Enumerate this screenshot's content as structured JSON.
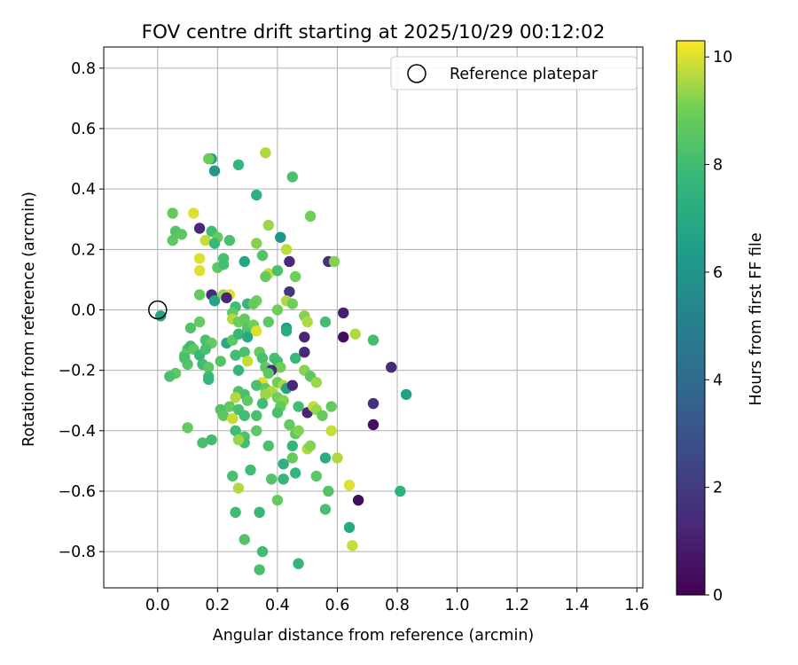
{
  "chart_data": {
    "type": "scatter",
    "title": "FOV centre drift starting at 2025/10/29 00:12:02",
    "xlabel": "Angular distance from reference (arcmin)",
    "ylabel": "Rotation from reference (arcmin)",
    "xlim": [
      -0.18,
      1.62
    ],
    "ylim": [
      -0.92,
      0.87
    ],
    "xticks": [
      0.0,
      0.2,
      0.4,
      0.6,
      0.8,
      1.0,
      1.2,
      1.4,
      1.6
    ],
    "xtick_labels": [
      "0.0",
      "0.2",
      "0.4",
      "0.6",
      "0.8",
      "1.0",
      "1.2",
      "1.4",
      "1.6"
    ],
    "yticks": [
      0.8,
      0.6,
      0.4,
      0.2,
      0.0,
      -0.2,
      -0.4,
      -0.6,
      -0.8
    ],
    "ytick_labels": [
      "0.8",
      "0.6",
      "0.4",
      "0.2",
      "0.0",
      "−0.2",
      "−0.4",
      "−0.6",
      "−0.8"
    ],
    "grid": true,
    "legend": {
      "placement": "upper-right",
      "entries": [
        "Reference platepar"
      ]
    },
    "reference_point": {
      "x": 0.0,
      "y": 0.0,
      "label": "Reference platepar"
    },
    "colorbar": {
      "label": "Hours from first FF file",
      "range": [
        0,
        10.3
      ],
      "ticks": [
        0,
        2,
        4,
        6,
        8,
        10
      ],
      "tick_labels": [
        "0",
        "2",
        "4",
        "6",
        "8",
        "10"
      ],
      "colormap": "viridis"
    },
    "points": [
      {
        "x": 0.18,
        "y": 0.5,
        "h": 6.6
      },
      {
        "x": 0.17,
        "y": 0.5,
        "h": 8.9
      },
      {
        "x": 0.27,
        "y": 0.48,
        "h": 7.6
      },
      {
        "x": 0.36,
        "y": 0.52,
        "h": 9.6
      },
      {
        "x": 0.19,
        "y": 0.46,
        "h": 6.2
      },
      {
        "x": 0.45,
        "y": 0.44,
        "h": 8.2
      },
      {
        "x": 0.33,
        "y": 0.38,
        "h": 7.4
      },
      {
        "x": 0.05,
        "y": 0.32,
        "h": 8.8
      },
      {
        "x": 0.12,
        "y": 0.32,
        "h": 10.0
      },
      {
        "x": 0.51,
        "y": 0.31,
        "h": 9.0
      },
      {
        "x": 0.14,
        "y": 0.27,
        "h": 1.3
      },
      {
        "x": 0.06,
        "y": 0.26,
        "h": 8.4
      },
      {
        "x": 0.08,
        "y": 0.25,
        "h": 8.6
      },
      {
        "x": 0.18,
        "y": 0.26,
        "h": 8.0
      },
      {
        "x": 0.37,
        "y": 0.28,
        "h": 9.4
      },
      {
        "x": 0.41,
        "y": 0.24,
        "h": 6.0
      },
      {
        "x": 0.2,
        "y": 0.24,
        "h": 8.8
      },
      {
        "x": 0.05,
        "y": 0.23,
        "h": 8.6
      },
      {
        "x": 0.16,
        "y": 0.23,
        "h": 9.8
      },
      {
        "x": 0.24,
        "y": 0.23,
        "h": 8.2
      },
      {
        "x": 0.19,
        "y": 0.22,
        "h": 7.8
      },
      {
        "x": 0.33,
        "y": 0.22,
        "h": 9.2
      },
      {
        "x": 0.43,
        "y": 0.2,
        "h": 9.7
      },
      {
        "x": 0.22,
        "y": 0.17,
        "h": 8.2
      },
      {
        "x": 0.35,
        "y": 0.18,
        "h": 8.4
      },
      {
        "x": 0.14,
        "y": 0.17,
        "h": 10.0
      },
      {
        "x": 0.29,
        "y": 0.16,
        "h": 6.8
      },
      {
        "x": 0.44,
        "y": 0.16,
        "h": 1.4
      },
      {
        "x": 0.57,
        "y": 0.16,
        "h": 1.6
      },
      {
        "x": 0.59,
        "y": 0.16,
        "h": 9.2
      },
      {
        "x": 0.2,
        "y": 0.14,
        "h": 8.6
      },
      {
        "x": 0.22,
        "y": 0.15,
        "h": 8.1
      },
      {
        "x": 0.14,
        "y": 0.13,
        "h": 10.0
      },
      {
        "x": 0.37,
        "y": 0.12,
        "h": 9.8
      },
      {
        "x": 0.4,
        "y": 0.13,
        "h": 8.2
      },
      {
        "x": 0.46,
        "y": 0.11,
        "h": 9.0
      },
      {
        "x": 0.36,
        "y": 0.11,
        "h": 8.8
      },
      {
        "x": 0.44,
        "y": 0.06,
        "h": 1.8
      },
      {
        "x": 0.18,
        "y": 0.05,
        "h": 1.5
      },
      {
        "x": 0.14,
        "y": 0.05,
        "h": 8.8
      },
      {
        "x": 0.22,
        "y": 0.05,
        "h": 9.4
      },
      {
        "x": 0.24,
        "y": 0.05,
        "h": 10.0
      },
      {
        "x": 0.23,
        "y": 0.04,
        "h": 1.2
      },
      {
        "x": 0.19,
        "y": 0.03,
        "h": 6.8
      },
      {
        "x": 0.26,
        "y": 0.01,
        "h": 8.0
      },
      {
        "x": 0.3,
        "y": 0.02,
        "h": 7.6
      },
      {
        "x": 0.33,
        "y": 0.03,
        "h": 9.0
      },
      {
        "x": 0.32,
        "y": 0.02,
        "h": 8.8
      },
      {
        "x": 0.43,
        "y": 0.03,
        "h": 9.6
      },
      {
        "x": 0.45,
        "y": 0.02,
        "h": 9.0
      },
      {
        "x": 0.4,
        "y": 0.0,
        "h": 9.0
      },
      {
        "x": 0.25,
        "y": -0.01,
        "h": 8.6
      },
      {
        "x": 0.25,
        "y": -0.03,
        "h": 9.6
      },
      {
        "x": 0.27,
        "y": -0.04,
        "h": 9.0
      },
      {
        "x": 0.29,
        "y": -0.03,
        "h": 8.8
      },
      {
        "x": 0.3,
        "y": -0.06,
        "h": 8.4
      },
      {
        "x": 0.32,
        "y": -0.05,
        "h": 9.0
      },
      {
        "x": 0.33,
        "y": -0.07,
        "h": 10.0
      },
      {
        "x": 0.37,
        "y": -0.04,
        "h": 8.6
      },
      {
        "x": 0.49,
        "y": -0.02,
        "h": 9.2
      },
      {
        "x": 0.5,
        "y": -0.04,
        "h": 9.6
      },
      {
        "x": 0.56,
        "y": -0.04,
        "h": 8.0
      },
      {
        "x": 0.62,
        "y": -0.01,
        "h": 1.0
      },
      {
        "x": 0.43,
        "y": -0.06,
        "h": 6.4
      },
      {
        "x": 0.43,
        "y": -0.07,
        "h": 7.2
      },
      {
        "x": 0.49,
        "y": -0.09,
        "h": 1.2
      },
      {
        "x": 0.62,
        "y": -0.09,
        "h": 0.4
      },
      {
        "x": 0.66,
        "y": -0.08,
        "h": 9.6
      },
      {
        "x": 0.72,
        "y": -0.1,
        "h": 8.0
      },
      {
        "x": 0.11,
        "y": -0.06,
        "h": 8.4
      },
      {
        "x": 0.14,
        "y": -0.04,
        "h": 8.8
      },
      {
        "x": 0.01,
        "y": -0.02,
        "h": 6.8
      },
      {
        "x": 0.23,
        "y": -0.11,
        "h": 7.0
      },
      {
        "x": 0.25,
        "y": -0.1,
        "h": 8.6
      },
      {
        "x": 0.27,
        "y": -0.08,
        "h": 7.8
      },
      {
        "x": 0.3,
        "y": -0.09,
        "h": 7.0
      },
      {
        "x": 0.16,
        "y": -0.1,
        "h": 8.2
      },
      {
        "x": 0.18,
        "y": -0.11,
        "h": 8.8
      },
      {
        "x": 0.1,
        "y": -0.13,
        "h": 8.4
      },
      {
        "x": 0.11,
        "y": -0.12,
        "h": 8.0
      },
      {
        "x": 0.12,
        "y": -0.13,
        "h": 8.6
      },
      {
        "x": 0.14,
        "y": -0.15,
        "h": 7.8
      },
      {
        "x": 0.16,
        "y": -0.13,
        "h": 8.2
      },
      {
        "x": 0.09,
        "y": -0.15,
        "h": 8.6
      },
      {
        "x": 0.09,
        "y": -0.16,
        "h": 8.2
      },
      {
        "x": 0.1,
        "y": -0.18,
        "h": 8.4
      },
      {
        "x": 0.15,
        "y": -0.18,
        "h": 8.0
      },
      {
        "x": 0.17,
        "y": -0.19,
        "h": 8.6
      },
      {
        "x": 0.21,
        "y": -0.17,
        "h": 8.4
      },
      {
        "x": 0.26,
        "y": -0.15,
        "h": 8.0
      },
      {
        "x": 0.29,
        "y": -0.14,
        "h": 8.2
      },
      {
        "x": 0.34,
        "y": -0.14,
        "h": 8.8
      },
      {
        "x": 0.35,
        "y": -0.16,
        "h": 8.2
      },
      {
        "x": 0.3,
        "y": -0.17,
        "h": 9.8
      },
      {
        "x": 0.36,
        "y": -0.19,
        "h": 8.6
      },
      {
        "x": 0.39,
        "y": -0.16,
        "h": 8.2
      },
      {
        "x": 0.4,
        "y": -0.17,
        "h": 8.0
      },
      {
        "x": 0.41,
        "y": -0.19,
        "h": 9.0
      },
      {
        "x": 0.38,
        "y": -0.2,
        "h": 1.5
      },
      {
        "x": 0.46,
        "y": -0.16,
        "h": 7.8
      },
      {
        "x": 0.49,
        "y": -0.14,
        "h": 1.4
      },
      {
        "x": 0.49,
        "y": -0.2,
        "h": 9.2
      },
      {
        "x": 0.51,
        "y": -0.22,
        "h": 8.6
      },
      {
        "x": 0.53,
        "y": -0.24,
        "h": 9.4
      },
      {
        "x": 0.78,
        "y": -0.19,
        "h": 1.4
      },
      {
        "x": 0.83,
        "y": -0.28,
        "h": 6.6
      },
      {
        "x": 0.06,
        "y": -0.21,
        "h": 8.6
      },
      {
        "x": 0.04,
        "y": -0.22,
        "h": 8.2
      },
      {
        "x": 0.17,
        "y": -0.22,
        "h": 8.0
      },
      {
        "x": 0.17,
        "y": -0.23,
        "h": 7.6
      },
      {
        "x": 0.27,
        "y": -0.2,
        "h": 7.6
      },
      {
        "x": 0.37,
        "y": -0.21,
        "h": 8.6
      },
      {
        "x": 0.4,
        "y": -0.24,
        "h": 9.0
      },
      {
        "x": 0.42,
        "y": -0.25,
        "h": 9.6
      },
      {
        "x": 0.35,
        "y": -0.24,
        "h": 10.0
      },
      {
        "x": 0.33,
        "y": -0.25,
        "h": 8.2
      },
      {
        "x": 0.36,
        "y": -0.26,
        "h": 8.8
      },
      {
        "x": 0.38,
        "y": -0.27,
        "h": 9.6
      },
      {
        "x": 0.43,
        "y": -0.26,
        "h": 6.8
      },
      {
        "x": 0.45,
        "y": -0.25,
        "h": 1.4
      },
      {
        "x": 0.27,
        "y": -0.27,
        "h": 8.4
      },
      {
        "x": 0.29,
        "y": -0.28,
        "h": 8.2
      },
      {
        "x": 0.26,
        "y": -0.29,
        "h": 9.6
      },
      {
        "x": 0.36,
        "y": -0.28,
        "h": 9.4
      },
      {
        "x": 0.4,
        "y": -0.29,
        "h": 9.0
      },
      {
        "x": 0.42,
        "y": -0.3,
        "h": 9.2
      },
      {
        "x": 0.3,
        "y": -0.3,
        "h": 8.6
      },
      {
        "x": 0.35,
        "y": -0.31,
        "h": 8.0
      },
      {
        "x": 0.24,
        "y": -0.32,
        "h": 8.8
      },
      {
        "x": 0.21,
        "y": -0.33,
        "h": 8.4
      },
      {
        "x": 0.22,
        "y": -0.35,
        "h": 8.6
      },
      {
        "x": 0.27,
        "y": -0.33,
        "h": 8.2
      },
      {
        "x": 0.29,
        "y": -0.35,
        "h": 8.0
      },
      {
        "x": 0.33,
        "y": -0.35,
        "h": 8.2
      },
      {
        "x": 0.41,
        "y": -0.32,
        "h": 8.8
      },
      {
        "x": 0.4,
        "y": -0.34,
        "h": 8.2
      },
      {
        "x": 0.47,
        "y": -0.32,
        "h": 8.0
      },
      {
        "x": 0.5,
        "y": -0.34,
        "h": 1.2
      },
      {
        "x": 0.52,
        "y": -0.32,
        "h": 9.8
      },
      {
        "x": 0.53,
        "y": -0.33,
        "h": 9.4
      },
      {
        "x": 0.55,
        "y": -0.35,
        "h": 8.8
      },
      {
        "x": 0.58,
        "y": -0.32,
        "h": 8.8
      },
      {
        "x": 0.72,
        "y": -0.31,
        "h": 1.6
      },
      {
        "x": 0.72,
        "y": -0.38,
        "h": 0.4
      },
      {
        "x": 0.25,
        "y": -0.36,
        "h": 9.8
      },
      {
        "x": 0.26,
        "y": -0.4,
        "h": 8.0
      },
      {
        "x": 0.29,
        "y": -0.42,
        "h": 8.4
      },
      {
        "x": 0.29,
        "y": -0.44,
        "h": 8.0
      },
      {
        "x": 0.27,
        "y": -0.43,
        "h": 9.4
      },
      {
        "x": 0.33,
        "y": -0.4,
        "h": 8.6
      },
      {
        "x": 0.37,
        "y": -0.45,
        "h": 8.2
      },
      {
        "x": 0.44,
        "y": -0.38,
        "h": 8.8
      },
      {
        "x": 0.46,
        "y": -0.41,
        "h": 8.6
      },
      {
        "x": 0.47,
        "y": -0.4,
        "h": 9.2
      },
      {
        "x": 0.58,
        "y": -0.4,
        "h": 9.8
      },
      {
        "x": 0.1,
        "y": -0.39,
        "h": 8.8
      },
      {
        "x": 0.15,
        "y": -0.44,
        "h": 8.2
      },
      {
        "x": 0.18,
        "y": -0.43,
        "h": 8.0
      },
      {
        "x": 0.45,
        "y": -0.45,
        "h": 7.6
      },
      {
        "x": 0.5,
        "y": -0.46,
        "h": 9.6
      },
      {
        "x": 0.51,
        "y": -0.45,
        "h": 9.2
      },
      {
        "x": 0.45,
        "y": -0.49,
        "h": 8.8
      },
      {
        "x": 0.42,
        "y": -0.51,
        "h": 7.4
      },
      {
        "x": 0.46,
        "y": -0.54,
        "h": 7.6
      },
      {
        "x": 0.56,
        "y": -0.49,
        "h": 7.2
      },
      {
        "x": 0.6,
        "y": -0.49,
        "h": 9.6
      },
      {
        "x": 0.31,
        "y": -0.53,
        "h": 8.0
      },
      {
        "x": 0.25,
        "y": -0.55,
        "h": 8.2
      },
      {
        "x": 0.38,
        "y": -0.56,
        "h": 8.4
      },
      {
        "x": 0.42,
        "y": -0.56,
        "h": 7.6
      },
      {
        "x": 0.53,
        "y": -0.55,
        "h": 8.6
      },
      {
        "x": 0.57,
        "y": -0.6,
        "h": 8.4
      },
      {
        "x": 0.64,
        "y": -0.58,
        "h": 10.0
      },
      {
        "x": 0.27,
        "y": -0.59,
        "h": 9.6
      },
      {
        "x": 0.4,
        "y": -0.63,
        "h": 8.8
      },
      {
        "x": 0.67,
        "y": -0.63,
        "h": 0.4
      },
      {
        "x": 0.81,
        "y": -0.6,
        "h": 7.4
      },
      {
        "x": 0.26,
        "y": -0.67,
        "h": 8.0
      },
      {
        "x": 0.34,
        "y": -0.67,
        "h": 7.8
      },
      {
        "x": 0.56,
        "y": -0.66,
        "h": 8.2
      },
      {
        "x": 0.64,
        "y": -0.72,
        "h": 7.0
      },
      {
        "x": 0.29,
        "y": -0.76,
        "h": 8.4
      },
      {
        "x": 0.65,
        "y": -0.78,
        "h": 9.8
      },
      {
        "x": 0.35,
        "y": -0.8,
        "h": 8.0
      },
      {
        "x": 0.47,
        "y": -0.84,
        "h": 7.6
      },
      {
        "x": 0.34,
        "y": -0.86,
        "h": 8.2
      }
    ]
  }
}
